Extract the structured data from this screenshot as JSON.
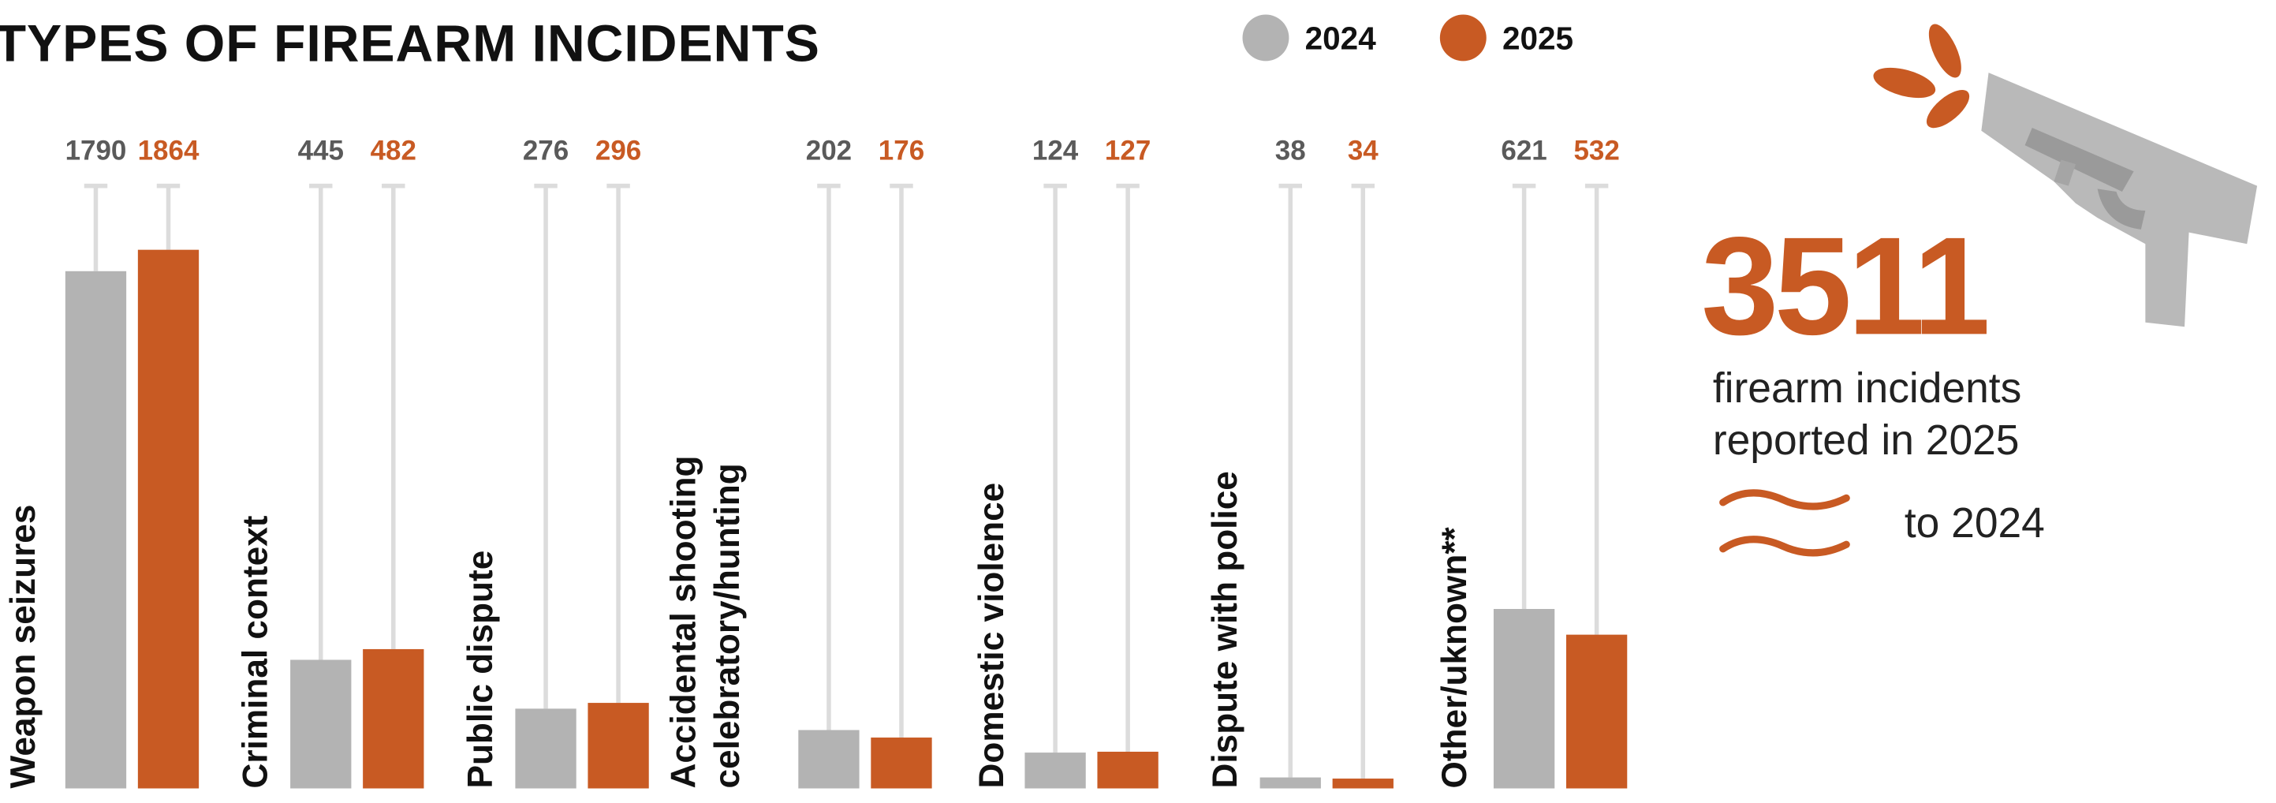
{
  "chart_data": {
    "type": "bar",
    "title": "TYPES OF FIREARM INCIDENTS",
    "categories": [
      [
        "Weapon seizures"
      ],
      [
        "Criminal context"
      ],
      [
        "Public dispute"
      ],
      [
        "Accidental shooting",
        "celebratory/hunting"
      ],
      [
        "Domestic violence"
      ],
      [
        "Dispute with police"
      ],
      [
        "Other/uknown**"
      ]
    ],
    "series": [
      {
        "name": "2024",
        "color": "#b3b3b3",
        "values": [
          1790,
          445,
          276,
          202,
          124,
          38,
          621
        ]
      },
      {
        "name": "2025",
        "color": "#c85a23",
        "values": [
          1864,
          482,
          296,
          176,
          127,
          34,
          532
        ]
      }
    ]
  },
  "callout": {
    "number": 3511,
    "lines": [
      "firearm incidents",
      "reported in 2025"
    ],
    "comparison": "to 2024"
  }
}
